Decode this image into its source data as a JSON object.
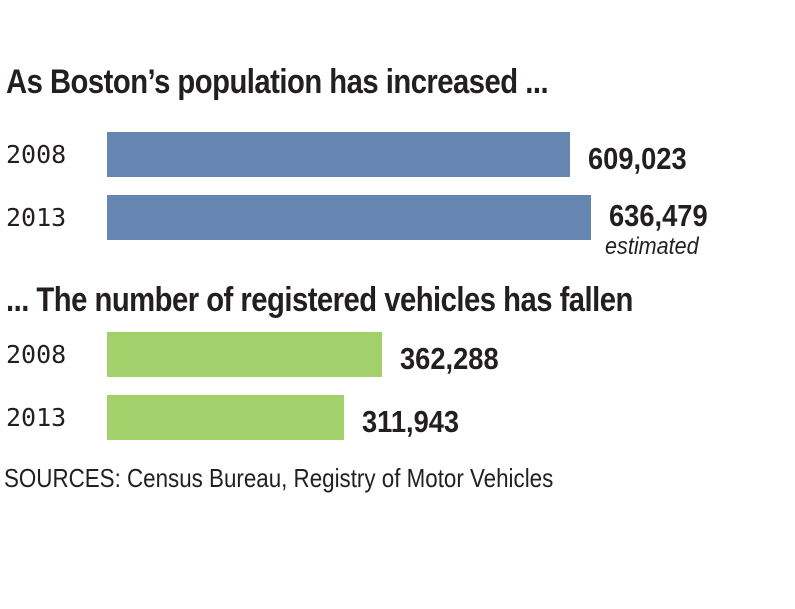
{
  "chart_data": [
    {
      "type": "bar",
      "orientation": "horizontal",
      "title": "As Boston’s population has increased ...",
      "categories": [
        "2008",
        "2013"
      ],
      "values": [
        609023,
        636479
      ],
      "value_labels": [
        "609,023",
        "636,479"
      ],
      "annotations": {
        "2013": "estimated"
      },
      "color": "#6486b1",
      "xlim": [
        0,
        636479
      ]
    },
    {
      "type": "bar",
      "orientation": "horizontal",
      "title": "... The number of registered vehicles has fallen",
      "categories": [
        "2008",
        "2013"
      ],
      "values": [
        362288,
        311943
      ],
      "value_labels": [
        "362,288",
        "311,943"
      ],
      "color": "#a2d06a",
      "xlim": [
        0,
        636479
      ]
    }
  ],
  "source": "SOURCES: Census Bureau, Registry of Motor Vehicles"
}
